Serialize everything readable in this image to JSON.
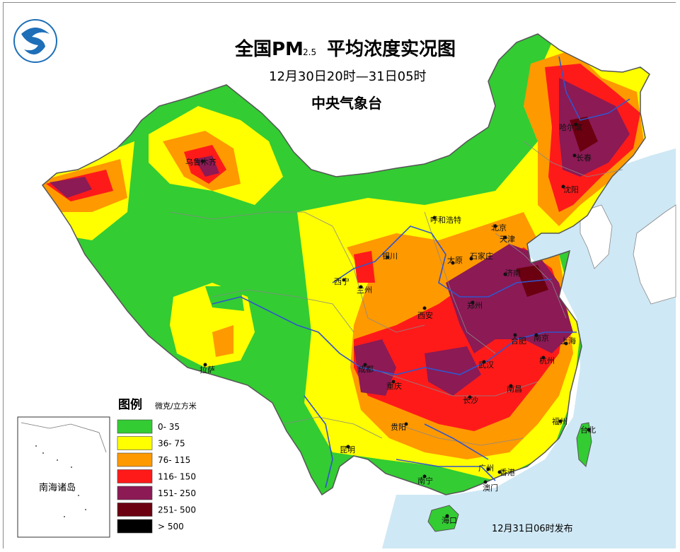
{
  "title": {
    "main": "全国PM",
    "sub": "2.5",
    "suffix": "平均浓度实况图",
    "period": "12月30日20时—31日05时",
    "agency": "中央气象台"
  },
  "publish_time": "12月31日06时发布",
  "colors": {
    "sea": "#cfe8f5",
    "land_outside": "#ffffff",
    "river": "#3355cc",
    "border": "#777777"
  },
  "legend": {
    "title": "图例",
    "unit": "微克/立方米",
    "items": [
      {
        "label": "0- 35",
        "color": "#33cc33"
      },
      {
        "label": "36- 75",
        "color": "#ffff00"
      },
      {
        "label": "76- 115",
        "color": "#ff9900"
      },
      {
        "label": "116- 150",
        "color": "#ff1a1a"
      },
      {
        "label": "151- 250",
        "color": "#8b1a55"
      },
      {
        "label": "251- 500",
        "color": "#6b0010"
      },
      {
        "label": "> 500",
        "color": "#000000"
      }
    ]
  },
  "inset": {
    "label": "南海诸岛"
  },
  "cities": {
    "urumqi": "乌鲁木齐",
    "harbin": "哈尔滨",
    "changchun": "长春",
    "shenyang": "沈阳",
    "hohhot": "呼和浩特",
    "beijing": "北京",
    "tianjin": "天津",
    "yinchuan": "银川",
    "shijiazhuang": "石家庄",
    "taiyuan": "太原",
    "jinan": "济南",
    "xining": "西宁",
    "lanzhou": "兰州",
    "zhengzhou": "郑州",
    "xian": "西安",
    "hefei": "合肥",
    "nanjing": "南京",
    "shanghai": "上海",
    "lhasa": "拉萨",
    "chengdu": "成都",
    "chongqing": "重庆",
    "wuhan": "武汉",
    "hangzhou": "杭州",
    "nanchang": "南昌",
    "changsha": "长沙",
    "guiyang": "贵阳",
    "fuzhou": "福州",
    "taibei": "台北",
    "kunming": "昆明",
    "guangzhou": "广州",
    "hongkong": "香港",
    "nanning": "南宁",
    "macao": "澳门",
    "haikou": "海口"
  }
}
